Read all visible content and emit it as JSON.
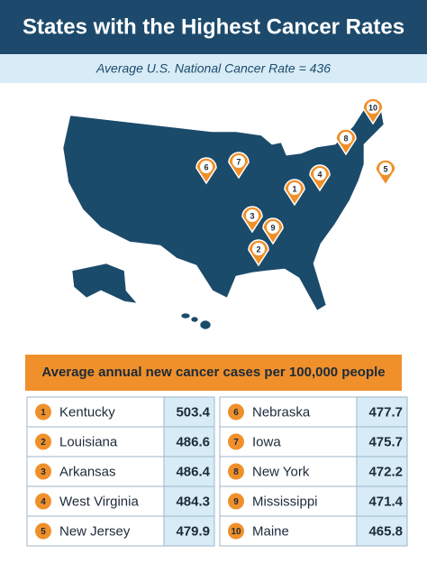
{
  "header": {
    "title": "States with the Highest Cancer Rates",
    "subtitle": "Average U.S. National Cancer Rate = 436"
  },
  "table": {
    "title": "Average annual new cancer cases per 100,000 people",
    "rows": [
      {
        "rank": 1,
        "state": "Kentucky",
        "value": 503.4
      },
      {
        "rank": 2,
        "state": "Louisiana",
        "value": 486.6
      },
      {
        "rank": 3,
        "state": "Arkansas",
        "value": 486.4
      },
      {
        "rank": 4,
        "state": "West Virginia",
        "value": 484.3
      },
      {
        "rank": 5,
        "state": "New Jersey",
        "value": 479.9
      },
      {
        "rank": 6,
        "state": "Nebraska",
        "value": 477.7
      },
      {
        "rank": 7,
        "state": "Iowa",
        "value": 475.7
      },
      {
        "rank": 8,
        "state": "New York",
        "value": 472.2
      },
      {
        "rank": 9,
        "state": "Mississippi",
        "value": 471.4
      },
      {
        "rank": 10,
        "state": "Maine",
        "value": 465.8
      }
    ]
  }
}
